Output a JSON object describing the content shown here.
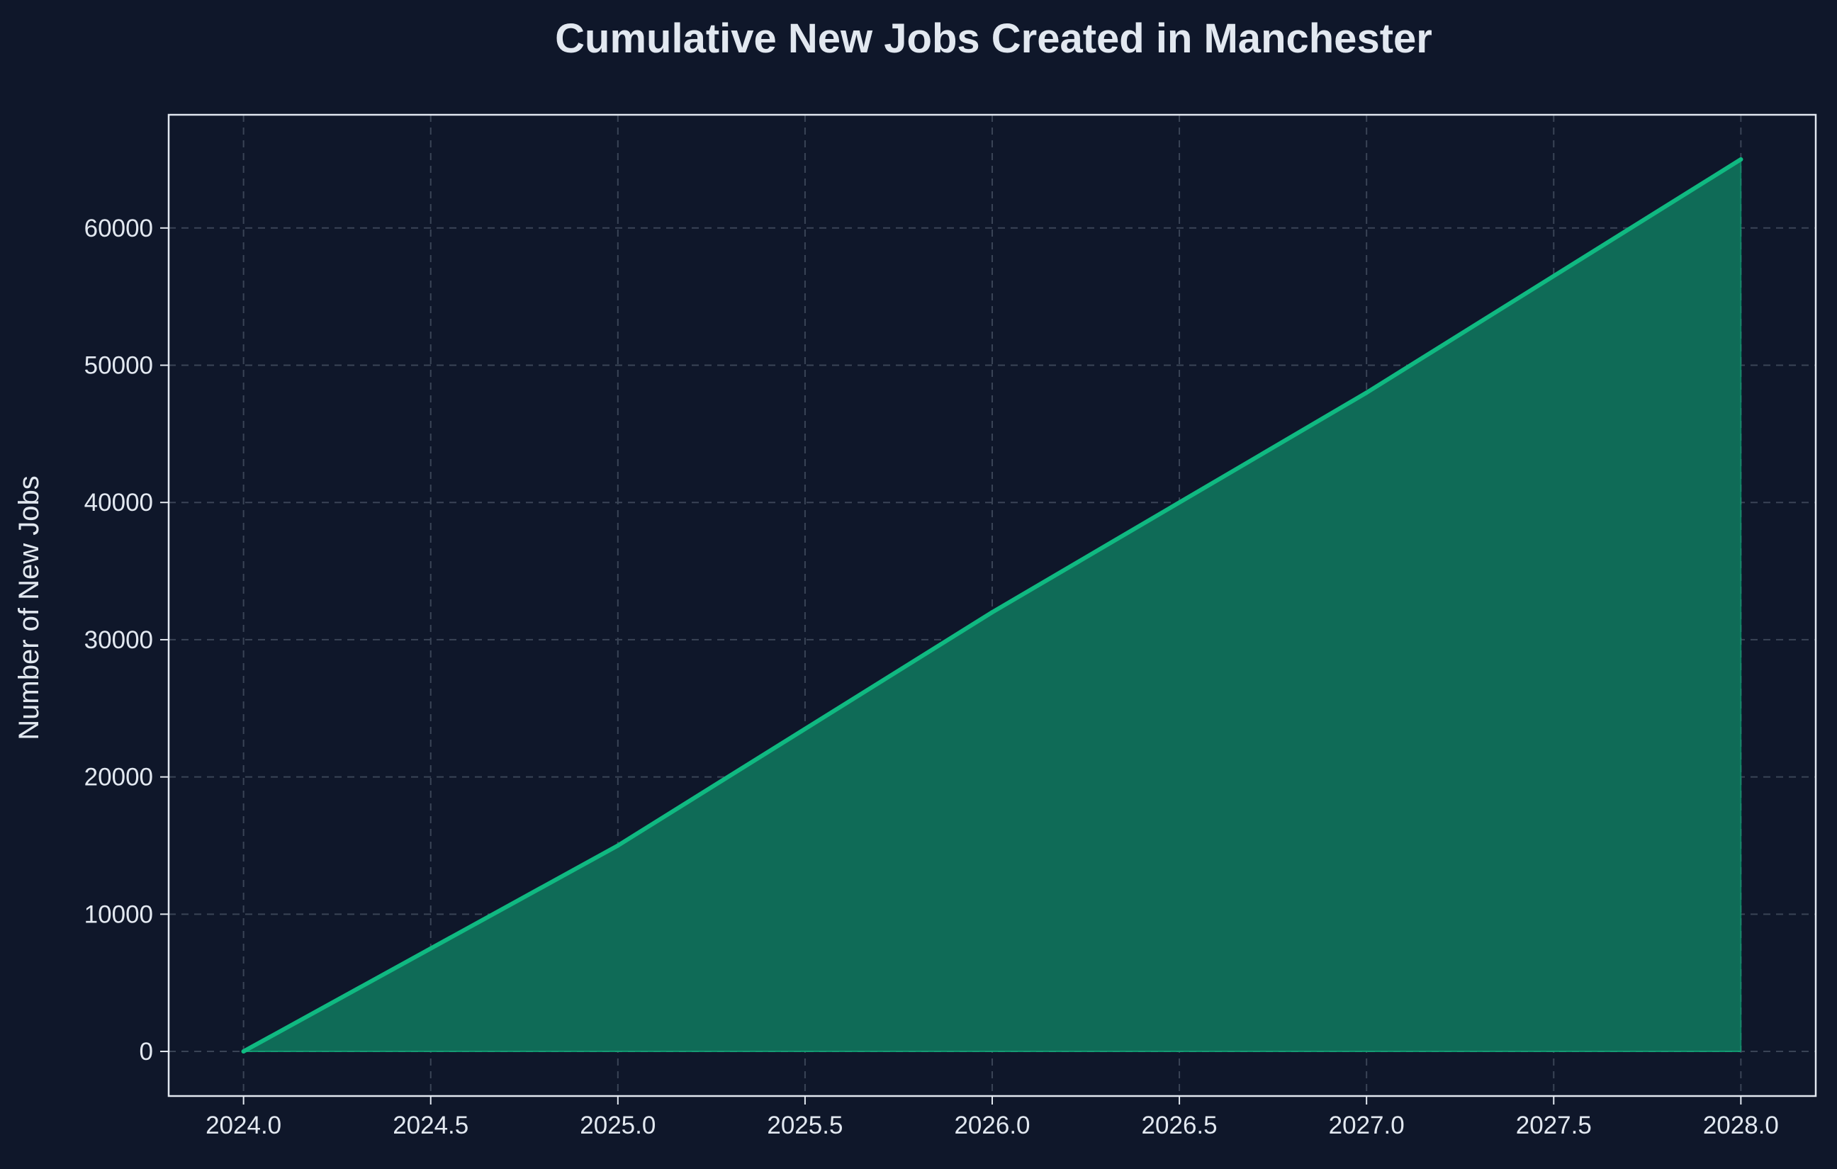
{
  "chart_data": {
    "type": "area",
    "title": "Cumulative New Jobs Created in Manchester",
    "xlabel": "",
    "ylabel": "Number of New Jobs",
    "x": [
      2024,
      2025,
      2026,
      2027,
      2028
    ],
    "series": [
      {
        "values": [
          0,
          15000,
          32000,
          48000,
          65000
        ]
      }
    ],
    "xlim": [
      2023.8,
      2028.2
    ],
    "ylim": [
      -3250,
      68250
    ],
    "x_ticks": [
      "2024.0",
      "2024.5",
      "2025.0",
      "2025.5",
      "2026.0",
      "2026.5",
      "2027.0",
      "2027.5",
      "2028.0"
    ],
    "y_ticks": [
      "0",
      "10000",
      "20000",
      "30000",
      "40000",
      "50000",
      "60000"
    ],
    "grid": true,
    "legend": "none",
    "colors": {
      "background": "#0f172a",
      "line": "#10b981",
      "fill": "#0f6b57",
      "grid": "#3a4456",
      "axis": "#e2e8f0",
      "text": "#e2e8f0"
    }
  }
}
